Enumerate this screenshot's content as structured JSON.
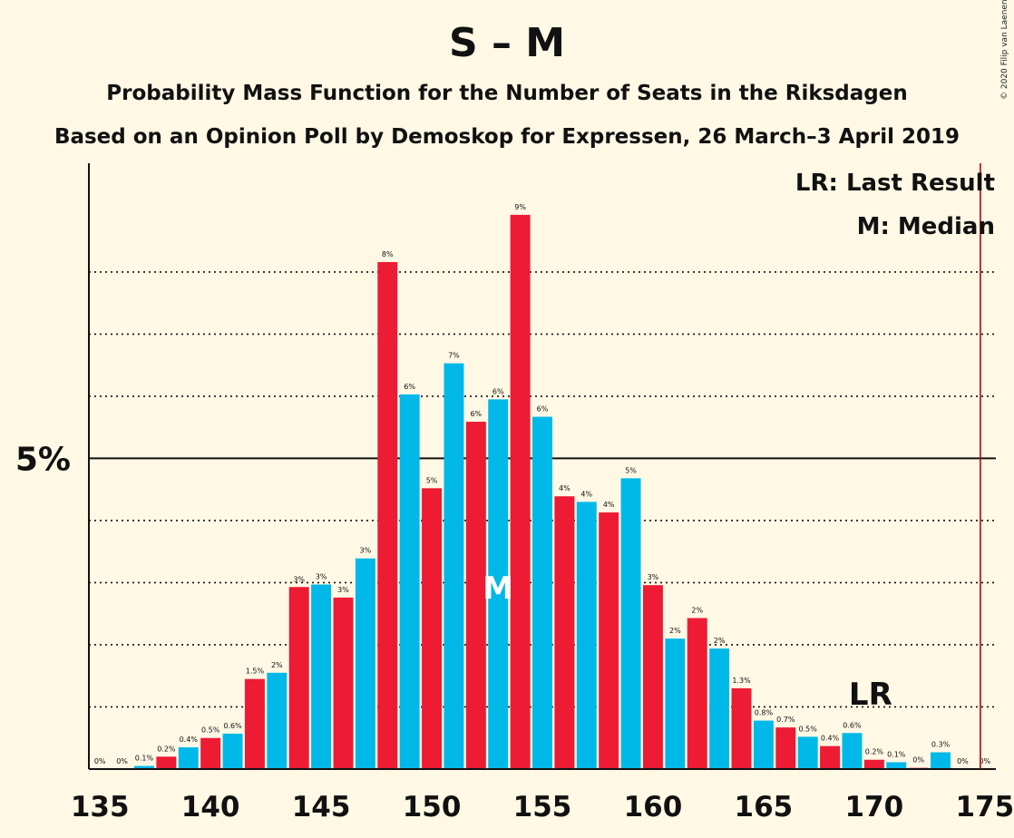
{
  "header": {
    "title": "S – M",
    "subtitle": "Probability Mass Function for the Number of Seats in the Riksdagen",
    "subtitle2": "Based on an Opinion Poll by Demoskop for Expressen, 26 March–3 April 2019",
    "copyright": "© 2020 Filip van Laenen"
  },
  "legend": {
    "last_result": "LR: Last Result",
    "median": "M: Median"
  },
  "markers": {
    "lr_label": "LR",
    "median_label": "M",
    "median_seat": 153,
    "last_result_seat": 175
  },
  "colors": {
    "background": "#fef8e5",
    "red": "#ed1b34",
    "blue": "#00b9e9",
    "last_result_line": "#c00000"
  },
  "chart_data": {
    "type": "bar",
    "xlim": [
      134.5,
      175.5
    ],
    "ylim": [
      0,
      9.75
    ],
    "x_ticks": [
      135,
      140,
      145,
      150,
      155,
      160,
      165,
      170,
      175
    ],
    "y_tick_label": "5%",
    "y_major": 5,
    "y_gridlines": [
      1,
      2,
      3,
      4,
      6,
      7,
      8
    ],
    "x": [
      135,
      136,
      137,
      138,
      139,
      140,
      141,
      142,
      143,
      144,
      145,
      146,
      147,
      148,
      149,
      150,
      151,
      152,
      153,
      154,
      155,
      156,
      157,
      158,
      159,
      160,
      161,
      162,
      163,
      164,
      165,
      166,
      167,
      168,
      169,
      170,
      171,
      172,
      173,
      174,
      175
    ],
    "values": [
      0,
      0,
      0.05,
      0.2,
      0.35,
      0.5,
      0.57,
      1.45,
      1.55,
      2.93,
      2.97,
      2.76,
      3.39,
      8.16,
      6.03,
      4.52,
      6.53,
      5.59,
      5.95,
      8.92,
      5.67,
      4.39,
      4.3,
      4.13,
      4.68,
      2.96,
      2.1,
      2.43,
      1.94,
      1.3,
      0.78,
      0.67,
      0.52,
      0.37,
      0.58,
      0.15,
      0.11,
      0.02,
      0.27,
      0,
      0
    ],
    "labels": [
      "0%",
      "0%",
      "0.1%",
      "0.2%",
      "0.4%",
      "0.5%",
      "0.6%",
      "1.5%",
      "2%",
      "3%",
      "3%",
      "3%",
      "3%",
      "8%",
      "6%",
      "5%",
      "7%",
      "6%",
      "6%",
      "9%",
      "6%",
      "4%",
      "4%",
      "4%",
      "5%",
      "3%",
      "2%",
      "2%",
      "2%",
      "1.3%",
      "0.8%",
      "0.7%",
      "0.5%",
      "0.4%",
      "0.6%",
      "0.2%",
      "0.1%",
      "0%",
      "0.3%",
      "0%",
      "0%"
    ]
  }
}
